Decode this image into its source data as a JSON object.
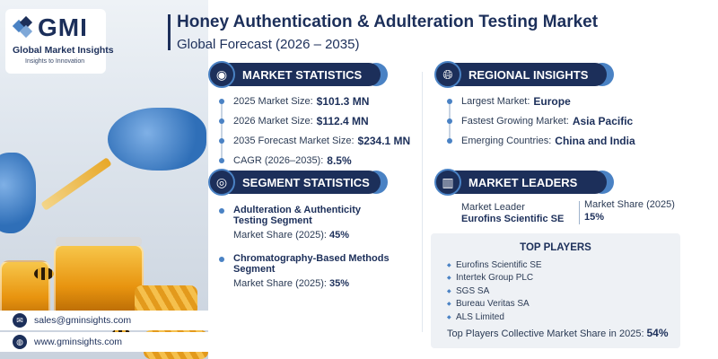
{
  "logo": {
    "mark": "GMI",
    "name": "Global Market Insights",
    "tagline": "Insights to Innovation"
  },
  "header": {
    "title": "Honey Authentication & Adulteration Testing Market",
    "subtitle": "Global Forecast (2026 – 2035)"
  },
  "market_statistics": {
    "heading": "MARKET STATISTICS",
    "icon": "globe-chart-icon",
    "items": [
      {
        "label": "2025 Market Size:",
        "value": "$101.3 MN"
      },
      {
        "label": "2026 Market Size:",
        "value": "$112.4 MN"
      },
      {
        "label": "2035 Forecast Market Size:",
        "value": "$234.1 MN"
      },
      {
        "label": "CAGR (2026–2035):",
        "value": "8.5%"
      }
    ]
  },
  "regional_insights": {
    "heading": "REGIONAL INSIGHTS",
    "icon": "globe-icon",
    "items": [
      {
        "label": "Largest Market:",
        "value": "Europe"
      },
      {
        "label": "Fastest Growing Market:",
        "value": "Asia Pacific"
      },
      {
        "label": "Emerging Countries:",
        "value": "China and India"
      }
    ]
  },
  "segment_statistics": {
    "heading": "SEGMENT STATISTICS",
    "icon": "target-icon",
    "segments": [
      {
        "title": "Adulteration & Authenticity Testing Segment",
        "share_label": "Market Share (2025):",
        "share_value": "45%"
      },
      {
        "title": "Chromatography-Based Methods Segment",
        "share_label": "Market Share (2025):",
        "share_value": "35%"
      }
    ]
  },
  "market_leaders": {
    "heading": "MARKET LEADERS",
    "icon": "bar-chart-icon",
    "leader_label": "Market Leader",
    "leader_name": "Eurofins Scientific SE",
    "share_label": "Market Share (2025)",
    "share_value": "15%"
  },
  "top_players": {
    "heading": "TOP PLAYERS",
    "players": [
      "Eurofins Scientific SE",
      "Intertek Group PLC",
      "SGS SA",
      "Bureau Veritas SA",
      "ALS Limited"
    ],
    "collective_label": "Top Players Collective Market Share in 2025:",
    "collective_value": "54%"
  },
  "contact": {
    "email": "sales@gminsights.com",
    "website": "www.gminsights.com"
  },
  "colors": {
    "navy": "#1c2f5a",
    "accent_blue": "#4a82c4",
    "panel_gray": "#eef1f5"
  }
}
